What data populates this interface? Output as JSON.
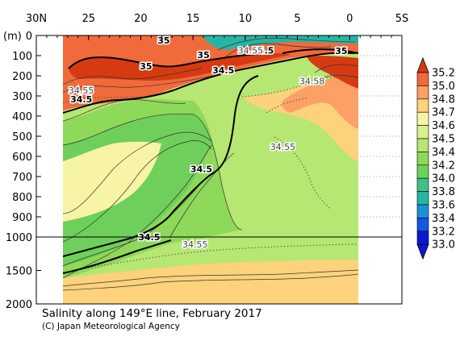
{
  "chart_data": {
    "type": "heatmap",
    "title": "Salinity along 149°E line, February 2017",
    "credit": "(C) Japan Meteorological Agency",
    "x_axis": {
      "ticks": [
        "30N",
        "25",
        "20",
        "15",
        "10",
        "5",
        "0",
        "5S"
      ],
      "values": [
        30,
        25,
        20,
        15,
        10,
        5,
        0,
        -5
      ],
      "range": [
        30,
        -5
      ]
    },
    "y_axis": {
      "unit": "(m)",
      "ticks_upper": [
        0,
        100,
        200,
        300,
        400,
        500,
        600,
        700,
        800,
        900,
        1000
      ],
      "ticks_lower": [
        1500,
        2000
      ],
      "range": [
        0,
        2000
      ],
      "break_at": 1000
    },
    "data_extent": {
      "lat_north": 28,
      "lat_south": -1
    },
    "colorbar": {
      "levels": [
        "35.2",
        "35.0",
        "34.8",
        "34.7",
        "34.6",
        "34.5",
        "34.4",
        "34.2",
        "34.0",
        "33.8",
        "33.6",
        "33.4",
        "33.2",
        "33.0"
      ],
      "colors": [
        "#d63a10",
        "#f06a3c",
        "#fba165",
        "#fcd27c",
        "#f7f5a5",
        "#d9f08c",
        "#b6e773",
        "#8ed85a",
        "#6fcf5b",
        "#3fc089",
        "#26b5a3",
        "#1f8fd5",
        "#1555e0",
        "#0a1ad0"
      ]
    },
    "bands": [
      {
        "salinity_range": "34.4-34.5",
        "color": "#d9f08c"
      },
      {
        "salinity_range": "34.2-34.4",
        "color": "#b6e773"
      },
      {
        "salinity_range": "34.0-34.2",
        "color": "#8ed85a"
      },
      {
        "salinity_range": "33.8-34.0",
        "color": "#6fcf5b"
      },
      {
        "salinity_range": "34.6-34.7",
        "color": "#f7f5a5"
      },
      {
        "salinity_range": "34.7-34.8",
        "color": "#fcd27c"
      },
      {
        "salinity_range": "34.8-35.0",
        "color": "#fba165"
      },
      {
        "salinity_range": "35.0-35.2",
        "color": "#f06a3c"
      },
      {
        "salinity_range": ">35.2",
        "color": "#d63a10"
      },
      {
        "salinity_range": "<33.8",
        "color": "#26b5a3"
      }
    ],
    "contour_labels": [
      {
        "text": "35",
        "lat": 19.5,
        "depth": 155
      },
      {
        "text": "35",
        "lat": 17.8,
        "depth": 28
      },
      {
        "text": "35",
        "lat": 14.0,
        "depth": 100
      },
      {
        "text": "34.5",
        "lat": 12.1,
        "depth": 175
      },
      {
        "text": "34.5",
        "lat": 8.3,
        "depth": 78
      },
      {
        "text": "34.55",
        "lat": 9.5,
        "depth": 78
      },
      {
        "text": "35",
        "lat": 0.8,
        "depth": 80
      },
      {
        "text": "34.58",
        "lat": 3.6,
        "depth": 230
      },
      {
        "text": "34.55",
        "lat": 25.7,
        "depth": 275
      },
      {
        "text": "34.5",
        "lat": 25.7,
        "depth": 320
      },
      {
        "text": "34.55",
        "lat": 6.4,
        "depth": 555
      },
      {
        "text": "34.5",
        "lat": 14.2,
        "depth": 665
      },
      {
        "text": "34.5",
        "lat": 19.2,
        "depth": 1010
      },
      {
        "text": "34.55",
        "lat": 14.8,
        "depth": 1120
      }
    ],
    "grid": false,
    "legend_position": "right"
  }
}
